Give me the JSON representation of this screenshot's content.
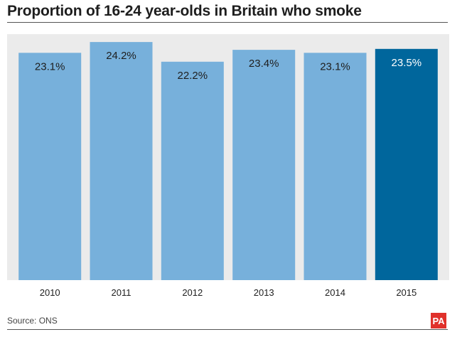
{
  "title": "Proportion of 16-24 year-olds in Britain who smoke",
  "source": "Source: ONS",
  "logo": "PA",
  "colors": {
    "bar": "#77b0db",
    "highlight": "#00669c",
    "plot_bg": "#ebebeb",
    "logo_bg": "#e0312b"
  },
  "chart_data": {
    "type": "bar",
    "title": "Proportion of 16-24 year-olds in Britain who smoke",
    "categories": [
      "2010",
      "2011",
      "2012",
      "2013",
      "2014",
      "2015"
    ],
    "values": [
      23.1,
      24.2,
      22.2,
      23.4,
      23.1,
      23.5
    ],
    "value_labels": [
      "23.1%",
      "24.2%",
      "22.2%",
      "23.4%",
      "23.1%",
      "23.5%"
    ],
    "highlight_index": 5,
    "xlabel": "",
    "ylabel": "",
    "ylim": [
      0,
      25
    ],
    "grid": false,
    "legend": "none"
  }
}
